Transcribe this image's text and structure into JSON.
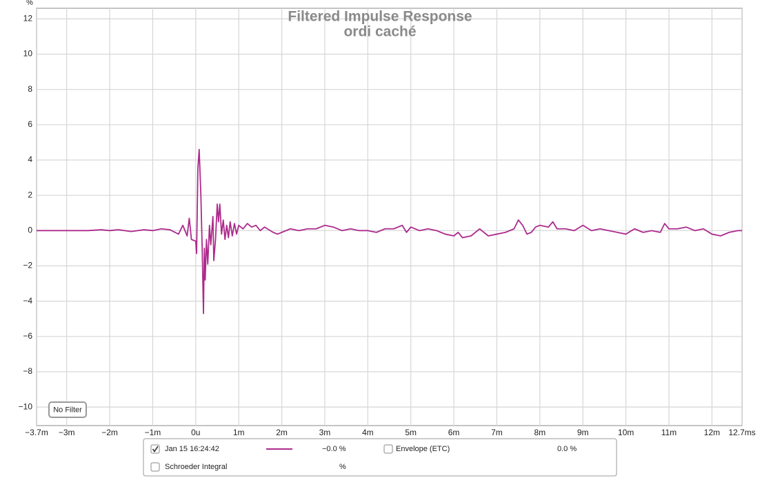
{
  "chart_data": {
    "type": "line",
    "title": "Filtered Impulse Response",
    "subtitle": "ordi caché",
    "y_unit": "%",
    "filter_button": "No Filter",
    "grid": true,
    "xlim": [
      -3.7,
      12.7
    ],
    "ylim": [
      -11.05,
      12.6
    ],
    "xticks": [
      {
        "value": -3.7,
        "label": "−3.7m"
      },
      {
        "value": -3,
        "label": "−3m"
      },
      {
        "value": -2,
        "label": "−2m"
      },
      {
        "value": -1,
        "label": "−1m"
      },
      {
        "value": 0,
        "label": "0u"
      },
      {
        "value": 1,
        "label": "1m"
      },
      {
        "value": 2,
        "label": "2m"
      },
      {
        "value": 3,
        "label": "3m"
      },
      {
        "value": 4,
        "label": "4m"
      },
      {
        "value": 5,
        "label": "5m"
      },
      {
        "value": 6,
        "label": "6m"
      },
      {
        "value": 7,
        "label": "7m"
      },
      {
        "value": 8,
        "label": "8m"
      },
      {
        "value": 9,
        "label": "9m"
      },
      {
        "value": 10,
        "label": "10m"
      },
      {
        "value": 11,
        "label": "11m"
      },
      {
        "value": 12,
        "label": "12m"
      },
      {
        "value": 12.7,
        "label": "12.7ms"
      }
    ],
    "yticks": [
      12,
      10,
      8,
      6,
      4,
      2,
      0,
      {
        "value": -2,
        "label": "−2"
      },
      {
        "value": -4,
        "label": "−4"
      },
      {
        "value": -6,
        "label": "−6"
      },
      {
        "value": -8,
        "label": "−8"
      },
      {
        "value": -10,
        "label": "−10"
      }
    ],
    "x": [
      -3.7,
      -2.5,
      -2.2,
      -2,
      -1.8,
      -1.5,
      -1.2,
      -1,
      -0.8,
      -0.6,
      -0.4,
      -0.3,
      -0.2,
      -0.15,
      -0.1,
      0,
      0.02,
      0.05,
      0.08,
      0.12,
      0.15,
      0.18,
      0.2,
      0.22,
      0.25,
      0.28,
      0.32,
      0.35,
      0.4,
      0.42,
      0.46,
      0.5,
      0.53,
      0.56,
      0.6,
      0.64,
      0.68,
      0.72,
      0.76,
      0.8,
      0.85,
      0.9,
      0.95,
      1.0,
      1.1,
      1.2,
      1.3,
      1.4,
      1.5,
      1.6,
      1.8,
      1.9,
      2.0,
      2.2,
      2.4,
      2.6,
      2.8,
      3.0,
      3.2,
      3.4,
      3.6,
      3.8,
      4.0,
      4.2,
      4.4,
      4.6,
      4.8,
      4.9,
      5.0,
      5.2,
      5.4,
      5.6,
      5.8,
      6.0,
      6.1,
      6.2,
      6.4,
      6.6,
      6.8,
      7.0,
      7.2,
      7.4,
      7.5,
      7.6,
      7.7,
      7.8,
      7.9,
      8.0,
      8.2,
      8.3,
      8.4,
      8.6,
      8.8,
      9.0,
      9.2,
      9.4,
      9.6,
      9.8,
      10.0,
      10.2,
      10.4,
      10.6,
      10.8,
      10.9,
      11.0,
      11.2,
      11.4,
      11.6,
      11.8,
      12.0,
      12.2,
      12.4,
      12.6,
      12.7
    ],
    "series": [
      {
        "name": "Jan 15 16:24:42",
        "color": "#ad2a8c",
        "checked": true,
        "readout": "−0.0 %",
        "values": [
          0,
          0,
          0.05,
          0,
          0.05,
          -0.05,
          0.05,
          0,
          0.1,
          0.05,
          -0.2,
          0.3,
          -0.3,
          0.7,
          -0.5,
          -0.6,
          -1.3,
          3.5,
          4.6,
          2.0,
          -1.0,
          -4.7,
          -1.0,
          -2.8,
          -0.5,
          -1.9,
          0.3,
          -0.8,
          0.8,
          -1.7,
          -0.5,
          1.5,
          0.5,
          1.5,
          -0.2,
          0.6,
          -0.5,
          0.3,
          -0.4,
          0.5,
          -0.3,
          0.4,
          -0.2,
          0.3,
          0.1,
          0.4,
          0.2,
          0.3,
          0,
          0.2,
          -0.1,
          -0.2,
          -0.1,
          0.1,
          0.0,
          0.1,
          0.1,
          0.3,
          0.2,
          0.0,
          0.1,
          0.0,
          0.0,
          -0.1,
          0.1,
          0.1,
          0.3,
          -0.1,
          0.2,
          0.0,
          0.1,
          0.0,
          -0.2,
          -0.3,
          -0.1,
          -0.4,
          -0.3,
          0.1,
          -0.3,
          -0.2,
          -0.1,
          0.1,
          0.6,
          0.3,
          -0.2,
          -0.1,
          0.2,
          0.3,
          0.2,
          0.5,
          0.1,
          0.1,
          0.0,
          0.3,
          0.0,
          0.1,
          0.0,
          -0.1,
          -0.2,
          0.1,
          -0.1,
          0.0,
          -0.1,
          0.4,
          0.1,
          0.1,
          0.2,
          0.0,
          0.1,
          -0.2,
          -0.3,
          -0.1,
          0.0,
          0.0
        ]
      }
    ],
    "legend_rows": [
      {
        "label": "Envelope (ETC)",
        "value": "0.0 %",
        "checked": false
      },
      {
        "label": "Schroeder Integral",
        "value": "%",
        "checked": false
      }
    ]
  }
}
